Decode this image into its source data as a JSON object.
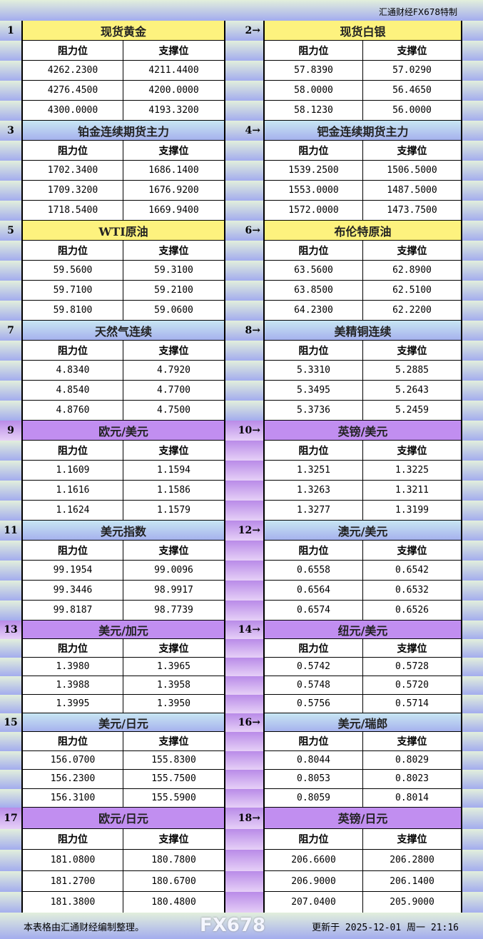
{
  "header": {
    "title": "汇通财经FX678特制"
  },
  "labels": {
    "resistance": "阻力位",
    "support": "支撑位",
    "arrow": "→"
  },
  "colors": {
    "yellow": "#fdf27e",
    "blue": "#b6ccf0",
    "purple": "#c18ef0"
  },
  "sections": [
    {
      "left": {
        "num": "1",
        "name": "现货黄金",
        "color": "yellow",
        "rows": [
          [
            "4262.2300",
            "4211.4400"
          ],
          [
            "4276.4500",
            "4200.0000"
          ],
          [
            "4300.0000",
            "4193.3200"
          ]
        ]
      },
      "right": {
        "num": "2",
        "name": "现货白银",
        "rows": [
          [
            "57.8390",
            "57.0290"
          ],
          [
            "58.0000",
            "56.4650"
          ],
          [
            "58.1230",
            "56.0000"
          ]
        ]
      }
    },
    {
      "left": {
        "num": "3",
        "name": "铂金连续期货主力",
        "color": "blue",
        "rows": [
          [
            "1702.3400",
            "1686.1400"
          ],
          [
            "1709.3200",
            "1676.9200"
          ],
          [
            "1718.5400",
            "1669.9400"
          ]
        ]
      },
      "right": {
        "num": "4",
        "name": "钯金连续期货主力",
        "rows": [
          [
            "1539.2500",
            "1506.5000"
          ],
          [
            "1553.0000",
            "1487.5000"
          ],
          [
            "1572.0000",
            "1473.7500"
          ]
        ]
      }
    },
    {
      "left": {
        "num": "5",
        "name": "WTI原油",
        "color": "yellow",
        "rows": [
          [
            "59.5600",
            "59.3100"
          ],
          [
            "59.7100",
            "59.2100"
          ],
          [
            "59.8100",
            "59.0600"
          ]
        ]
      },
      "right": {
        "num": "6",
        "name": "布伦特原油",
        "rows": [
          [
            "63.5600",
            "62.8900"
          ],
          [
            "63.8500",
            "62.5100"
          ],
          [
            "64.2300",
            "62.2200"
          ]
        ]
      }
    },
    {
      "left": {
        "num": "7",
        "name": "天然气连续",
        "color": "blue",
        "rows": [
          [
            "4.8340",
            "4.7920"
          ],
          [
            "4.8540",
            "4.7700"
          ],
          [
            "4.8760",
            "4.7500"
          ]
        ]
      },
      "right": {
        "num": "8",
        "name": "美精铜连续",
        "rows": [
          [
            "5.3310",
            "5.2885"
          ],
          [
            "5.3495",
            "5.2643"
          ],
          [
            "5.3736",
            "5.2459"
          ]
        ]
      }
    },
    {
      "left": {
        "num": "9",
        "name": "欧元/美元",
        "color": "purple",
        "rows": [
          [
            "1.1609",
            "1.1594"
          ],
          [
            "1.1616",
            "1.1586"
          ],
          [
            "1.1624",
            "1.1579"
          ]
        ]
      },
      "right": {
        "num": "10",
        "name": "英镑/美元",
        "rows": [
          [
            "1.3251",
            "1.3225"
          ],
          [
            "1.3263",
            "1.3211"
          ],
          [
            "1.3277",
            "1.3199"
          ]
        ]
      }
    },
    {
      "left": {
        "num": "11",
        "name": "美元指数",
        "color": "blue",
        "rows": [
          [
            "99.1954",
            "99.0096"
          ],
          [
            "99.3446",
            "98.9917"
          ],
          [
            "99.8187",
            "98.7739"
          ]
        ]
      },
      "right": {
        "num": "12",
        "name": "澳元/美元",
        "rows": [
          [
            "0.6558",
            "0.6542"
          ],
          [
            "0.6564",
            "0.6532"
          ],
          [
            "0.6574",
            "0.6526"
          ]
        ]
      }
    },
    {
      "left": {
        "num": "13",
        "name": "美元/加元",
        "color": "purple",
        "rows": [
          [
            "1.3980",
            "1.3965"
          ],
          [
            "1.3988",
            "1.3958"
          ],
          [
            "1.3995",
            "1.3950"
          ]
        ]
      },
      "right": {
        "num": "14",
        "name": "纽元/美元",
        "rows": [
          [
            "0.5742",
            "0.5728"
          ],
          [
            "0.5748",
            "0.5720"
          ],
          [
            "0.5756",
            "0.5714"
          ]
        ]
      }
    },
    {
      "left": {
        "num": "15",
        "name": "美元/日元",
        "color": "blue",
        "rows": [
          [
            "156.0700",
            "155.8300"
          ],
          [
            "156.2300",
            "155.7500"
          ],
          [
            "156.3100",
            "155.5900"
          ]
        ]
      },
      "right": {
        "num": "16",
        "name": "美元/瑞郎",
        "rows": [
          [
            "0.8044",
            "0.8029"
          ],
          [
            "0.8053",
            "0.8023"
          ],
          [
            "0.8059",
            "0.8014"
          ]
        ]
      }
    },
    {
      "left": {
        "num": "17",
        "name": "欧元/日元",
        "color": "purple",
        "rows": [
          [
            "181.0800",
            "180.7800"
          ],
          [
            "181.2700",
            "180.6700"
          ],
          [
            "181.3800",
            "180.4800"
          ]
        ]
      },
      "right": {
        "num": "18",
        "name": "英镑/日元",
        "rows": [
          [
            "206.6600",
            "206.2800"
          ],
          [
            "206.9000",
            "206.1400"
          ],
          [
            "207.0400",
            "205.9000"
          ]
        ]
      }
    }
  ],
  "footer": {
    "note": "本表格由汇通财经编制整理。",
    "updated": "更新于 2025-12-01 周一 21:16",
    "watermark": "FX678"
  }
}
